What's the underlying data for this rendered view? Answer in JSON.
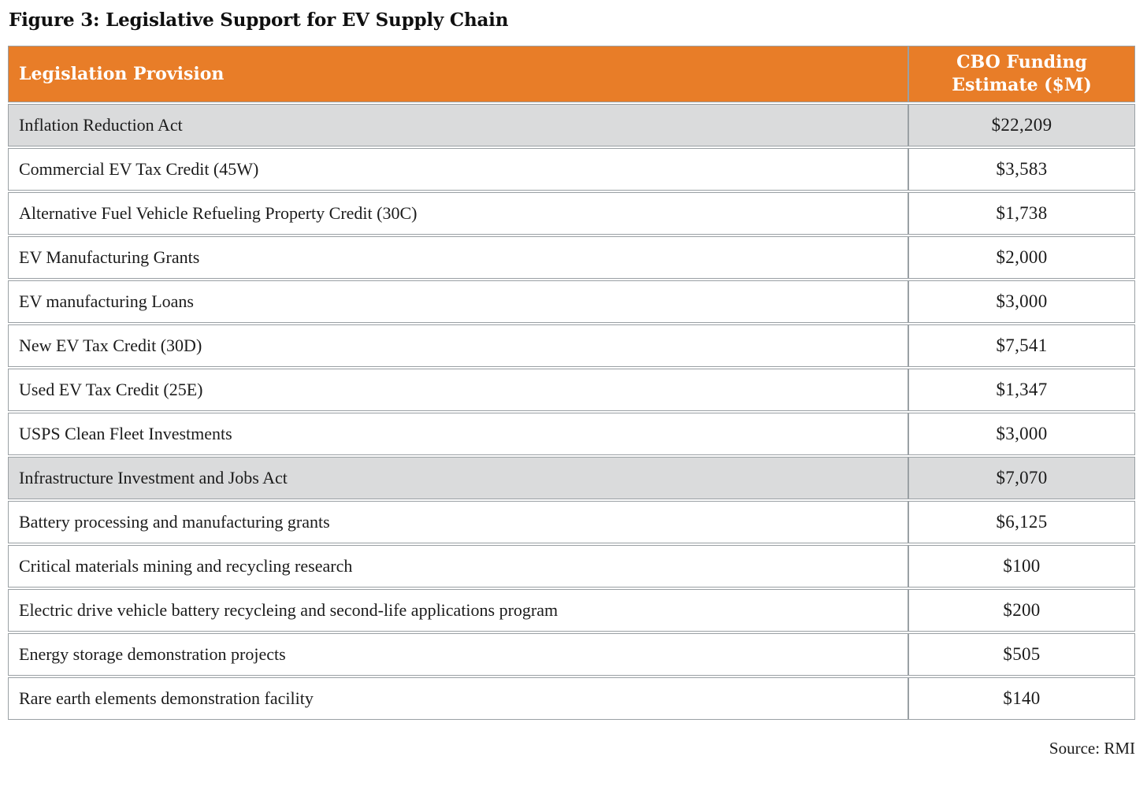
{
  "figure": {
    "title": "Figure 3: Legislative Support for EV Supply Chain",
    "source": "Source: RMI"
  },
  "table": {
    "header": {
      "provision": "Legislation Provision",
      "funding_line1": "CBO Funding",
      "funding_line2": "Estimate ($M)"
    },
    "rows": [
      {
        "label": "Inflation Reduction Act",
        "value": "$22,209",
        "section": true
      },
      {
        "label": "Commercial EV Tax Credit (45W)",
        "value": "$3,583",
        "section": false
      },
      {
        "label": "Alternative Fuel Vehicle Refueling Property Credit (30C)",
        "value": "$1,738",
        "section": false
      },
      {
        "label": "EV Manufacturing Grants",
        "value": "$2,000",
        "section": false
      },
      {
        "label": "EV manufacturing Loans",
        "value": "$3,000",
        "section": false
      },
      {
        "label": "New EV Tax Credit (30D)",
        "value": "$7,541",
        "section": false
      },
      {
        "label": "Used EV Tax Credit (25E)",
        "value": "$1,347",
        "section": false
      },
      {
        "label": "USPS Clean Fleet Investments",
        "value": "$3,000",
        "section": false
      },
      {
        "label": "Infrastructure Investment and Jobs Act",
        "value": "$7,070",
        "section": true
      },
      {
        "label": "Battery processing and manufacturing grants",
        "value": "$6,125",
        "section": false
      },
      {
        "label": "Critical materials mining and recycling research",
        "value": "$100",
        "section": false
      },
      {
        "label": "Electric drive vehicle battery recycleing and second-life applications program",
        "value": "$200",
        "section": false
      },
      {
        "label": "Energy storage demonstration projects",
        "value": "$505",
        "section": false
      },
      {
        "label": "Rare earth elements demonstration facility",
        "value": "$140",
        "section": false
      }
    ]
  },
  "colors": {
    "header_bg": "#e87d28",
    "header_text": "#ffffff",
    "section_row_bg": "#dadbdc",
    "border": "#9aa0a4",
    "body_text": "#1b1b1b"
  },
  "chart_data": {
    "type": "table",
    "title": "Figure 3: Legislative Support for EV Supply Chain",
    "columns": [
      "Legislation Provision",
      "CBO Funding Estimate ($M)"
    ],
    "rows": [
      [
        "Inflation Reduction Act",
        22209
      ],
      [
        "Commercial EV Tax Credit (45W)",
        3583
      ],
      [
        "Alternative Fuel Vehicle Refueling Property Credit (30C)",
        1738
      ],
      [
        "EV Manufacturing Grants",
        2000
      ],
      [
        "EV manufacturing Loans",
        3000
      ],
      [
        "New EV Tax Credit (30D)",
        7541
      ],
      [
        "Used EV Tax Credit (25E)",
        1347
      ],
      [
        "USPS Clean Fleet Investments",
        3000
      ],
      [
        "Infrastructure Investment and Jobs Act",
        7070
      ],
      [
        "Battery processing and manufacturing grants",
        6125
      ],
      [
        "Critical materials mining and recycling research",
        100
      ],
      [
        "Electric drive vehicle battery recycleing and second-life applications program",
        200
      ],
      [
        "Energy storage demonstration projects",
        505
      ],
      [
        "Rare earth elements demonstration facility",
        140
      ]
    ],
    "section_rows": [
      "Inflation Reduction Act",
      "Infrastructure Investment and Jobs Act"
    ],
    "units": "$M",
    "source": "RMI"
  }
}
